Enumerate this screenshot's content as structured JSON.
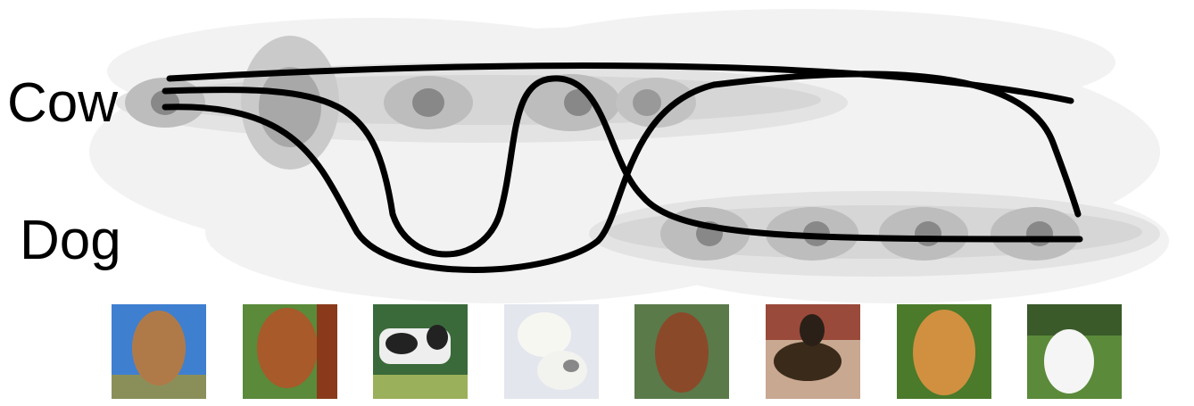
{
  "labels": [
    "Cow",
    "Dog"
  ]
}
